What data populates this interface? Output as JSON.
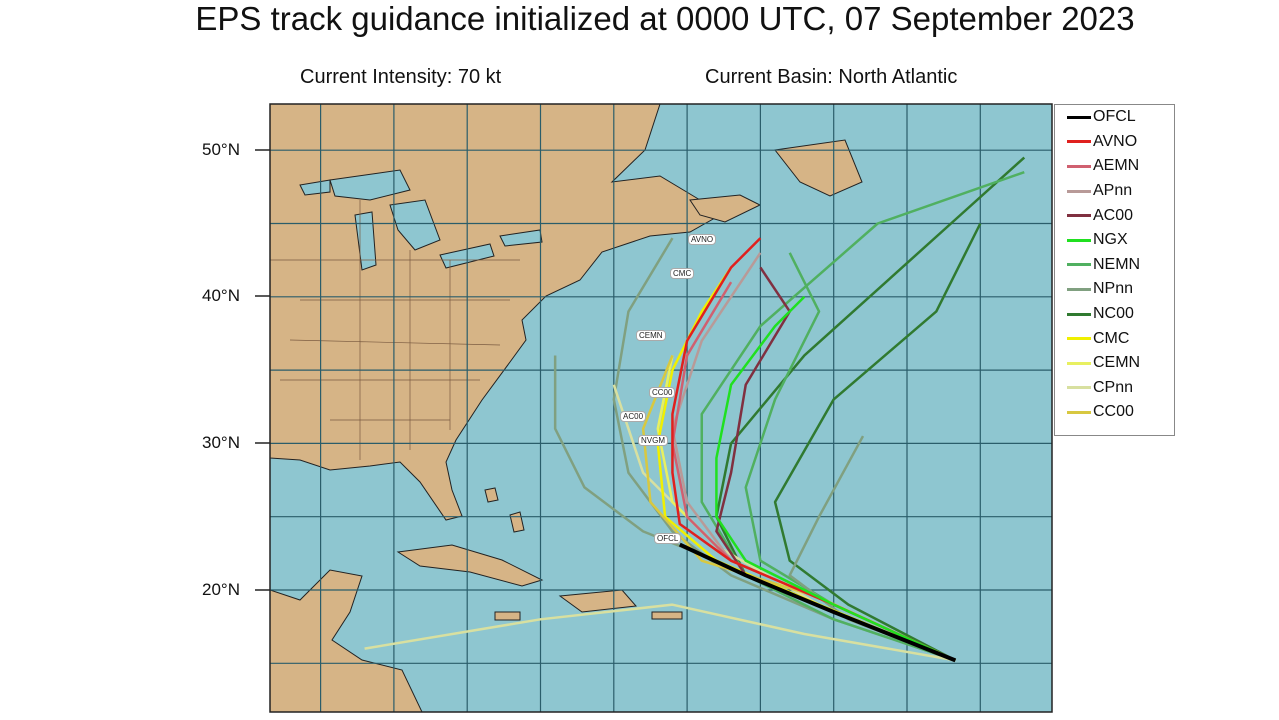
{
  "title": "EPS track guidance initialized at 0000 UTC, 07 September 2023",
  "intensity": "Current Intensity: 70 kt",
  "basin": "Current Basin: North Atlantic",
  "lat_labels": [
    "50°N",
    "40°N",
    "30°N",
    "20°N"
  ],
  "colors": {
    "ocean": "#8ec6d0",
    "land": "#d6b486",
    "grid": "#2a5d6a"
  },
  "legend": [
    {
      "name": "OFCL",
      "color": "#000000"
    },
    {
      "name": "AVNO",
      "color": "#e0201e"
    },
    {
      "name": "AEMN",
      "color": "#d06070"
    },
    {
      "name": "APnn",
      "color": "#b89a98"
    },
    {
      "name": "AC00",
      "color": "#803040"
    },
    {
      "name": "NGX",
      "color": "#20e020"
    },
    {
      "name": "NEMN",
      "color": "#50b060"
    },
    {
      "name": "NPnn",
      "color": "#80a080"
    },
    {
      "name": "NC00",
      "color": "#307a30"
    },
    {
      "name": "CMC",
      "color": "#f0f000"
    },
    {
      "name": "CEMN",
      "color": "#e8f060"
    },
    {
      "name": "CPnn",
      "color": "#d8e0a0"
    },
    {
      "name": "CC00",
      "color": "#d8c840"
    }
  ],
  "map_labels": [
    "AVNO",
    "CMC",
    "CEMN",
    "CC00",
    "AC00",
    "NVGM",
    "OFCL"
  ],
  "tracks": [
    {
      "model": "NPnn",
      "pts": [
        [
          -46.7,
          15.2
        ],
        [
          -55,
          18
        ],
        [
          -62,
          21
        ],
        [
          -66,
          24
        ],
        [
          -69,
          28
        ],
        [
          -70,
          33
        ],
        [
          -69,
          39
        ],
        [
          -66,
          44
        ]
      ]
    },
    {
      "model": "NPnn",
      "pts": [
        [
          -46.7,
          15.2
        ],
        [
          -56,
          19
        ],
        [
          -63,
          22
        ],
        [
          -68,
          24
        ],
        [
          -72,
          27
        ],
        [
          -74,
          31
        ],
        [
          -74,
          36
        ]
      ]
    },
    {
      "model": "NC00",
      "pts": [
        [
          -46.7,
          15.2
        ],
        [
          -55,
          18.5
        ],
        [
          -61,
          21
        ],
        [
          -63,
          25
        ],
        [
          -62,
          30
        ],
        [
          -57,
          36
        ],
        [
          -47,
          45
        ],
        [
          -42,
          49.5
        ]
      ]
    },
    {
      "model": "NC00",
      "pts": [
        [
          -46.7,
          15.2
        ],
        [
          -54,
          19
        ],
        [
          -58,
          22
        ],
        [
          -59,
          26
        ],
        [
          -55,
          33
        ],
        [
          -48,
          39
        ],
        [
          -45,
          45
        ]
      ]
    },
    {
      "model": "NEMN",
      "pts": [
        [
          -46.7,
          15.2
        ],
        [
          -55,
          18
        ],
        [
          -61,
          21
        ],
        [
          -64,
          26
        ],
        [
          -64,
          32
        ],
        [
          -60,
          38
        ],
        [
          -52,
          45
        ],
        [
          -42,
          48.5
        ]
      ]
    },
    {
      "model": "NEMN",
      "pts": [
        [
          -46.7,
          15.2
        ],
        [
          -55,
          19
        ],
        [
          -60,
          22
        ],
        [
          -61,
          27
        ],
        [
          -59,
          33
        ],
        [
          -56,
          39
        ],
        [
          -58,
          43
        ]
      ]
    },
    {
      "model": "NPnn",
      "pts": [
        [
          -46.7,
          15.2
        ],
        [
          -54,
          18
        ],
        [
          -58,
          21
        ],
        [
          -56,
          25
        ],
        [
          -53,
          30.5
        ]
      ]
    },
    {
      "model": "CPnn",
      "pts": [
        [
          -46.7,
          15.2
        ],
        [
          -57,
          17
        ],
        [
          -66,
          19
        ],
        [
          -75,
          18
        ],
        [
          -87,
          16
        ]
      ]
    },
    {
      "model": "CPnn",
      "pts": [
        [
          -46.7,
          15.2
        ],
        [
          -56,
          19
        ],
        [
          -63,
          23
        ],
        [
          -68,
          28
        ],
        [
          -70,
          34
        ]
      ]
    },
    {
      "model": "CEMN",
      "pts": [
        [
          -46.7,
          15.2
        ],
        [
          -55,
          19
        ],
        [
          -62,
          22
        ],
        [
          -66,
          26
        ],
        [
          -67,
          31
        ],
        [
          -66,
          36
        ]
      ]
    },
    {
      "model": "CMC",
      "pts": [
        [
          -46.7,
          15.2
        ],
        [
          -56,
          19
        ],
        [
          -63,
          22
        ],
        [
          -66.5,
          25
        ],
        [
          -67,
          30
        ],
        [
          -66,
          35
        ],
        [
          -64,
          39
        ],
        [
          -62,
          42
        ]
      ]
    },
    {
      "model": "CC00",
      "pts": [
        [
          -46.7,
          15.2
        ],
        [
          -56,
          19.5
        ],
        [
          -64,
          22
        ],
        [
          -67.5,
          26
        ],
        [
          -68,
          31
        ],
        [
          -66,
          36
        ]
      ]
    },
    {
      "model": "AC00",
      "pts": [
        [
          -46.7,
          15.2
        ],
        [
          -55,
          18.5
        ],
        [
          -61,
          21
        ],
        [
          -63,
          24
        ],
        [
          -62,
          28
        ],
        [
          -61,
          34
        ],
        [
          -58,
          39
        ],
        [
          -60,
          42
        ]
      ]
    },
    {
      "model": "APnn",
      "pts": [
        [
          -46.7,
          15.2
        ],
        [
          -55,
          19
        ],
        [
          -62,
          22
        ],
        [
          -65,
          26
        ],
        [
          -66,
          31
        ],
        [
          -64,
          37
        ],
        [
          -60,
          43
        ]
      ]
    },
    {
      "model": "AEMN",
      "pts": [
        [
          -46.7,
          15.2
        ],
        [
          -55,
          19
        ],
        [
          -62,
          22
        ],
        [
          -65,
          25
        ],
        [
          -66,
          30
        ],
        [
          -65,
          36
        ],
        [
          -62,
          41
        ]
      ]
    },
    {
      "model": "AVNO",
      "pts": [
        [
          -46.7,
          15.2
        ],
        [
          -55,
          19
        ],
        [
          -62,
          22
        ],
        [
          -65.5,
          24.5
        ],
        [
          -66,
          28
        ],
        [
          -66,
          32
        ],
        [
          -65,
          37
        ],
        [
          -62,
          42
        ],
        [
          -60,
          44
        ]
      ]
    },
    {
      "model": "NGX",
      "pts": [
        [
          -46.7,
          15.2
        ],
        [
          -55,
          19
        ],
        [
          -61,
          22
        ],
        [
          -63,
          25
        ],
        [
          -63,
          29
        ],
        [
          -62,
          34
        ],
        [
          -59,
          38
        ],
        [
          -57,
          40
        ]
      ]
    },
    {
      "model": "OFCL",
      "pts": [
        [
          -46.7,
          15.2
        ],
        [
          -55,
          18.5
        ],
        [
          -61,
          21
        ],
        [
          -65.5,
          23.1
        ]
      ]
    }
  ]
}
